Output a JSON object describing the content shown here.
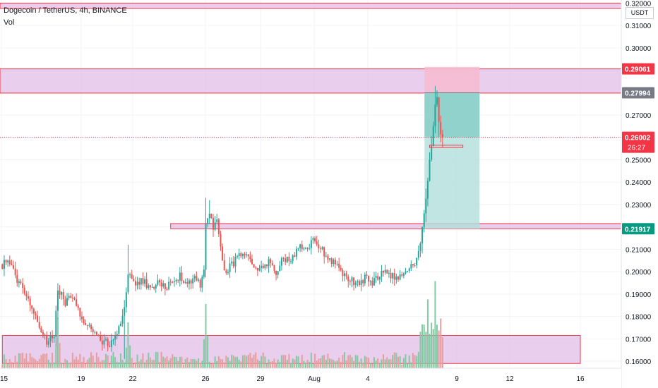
{
  "header": {
    "title": "Dogecoin / TetherUS, 4h, BINANCE",
    "indicator": "Vol"
  },
  "price_axis": {
    "currency": "USDT",
    "ticks": [
      "0.31000",
      "0.30000",
      "0.29000",
      "0.28000",
      "0.27000",
      "0.26000",
      "0.25000",
      "0.24000",
      "0.23000",
      "0.22000",
      "0.21000",
      "0.20000",
      "0.19000",
      "0.18000",
      "0.17000",
      "0.16000"
    ],
    "top_partial_tick": "0.32000",
    "badges": [
      {
        "text": "0.29061",
        "value": 0.29061,
        "color": "#f23645"
      },
      {
        "text": "0.27994",
        "value": 0.27994,
        "color": "#787b86"
      },
      {
        "text": "0.26002",
        "value": 0.26002,
        "color": "#f23645",
        "sub": "26:27"
      },
      {
        "text": "0.21917",
        "value": 0.21917,
        "color": "#089981"
      }
    ]
  },
  "time_axis": {
    "labels": [
      "15",
      "19",
      "22",
      "26",
      "29",
      "Aug",
      "4",
      "9",
      "12",
      "16"
    ]
  },
  "colors": {
    "up": "#26a69a",
    "down": "#ef5350",
    "zone_fill": "#e1bee7",
    "zone_border": "#f23645",
    "profit": "#b2dfdb",
    "loss": "#f8bbd0"
  },
  "chart_data": {
    "type": "candlestick",
    "title": "Dogecoin / TetherUS, 4h, BINANCE",
    "instrument": "DOGEUSDT",
    "timeframe": "4h",
    "exchange": "BINANCE",
    "price_range": [
      0.155,
      0.322
    ],
    "current_price": 0.26002,
    "bar_countdown": "26:27",
    "anchors": [
      [
        0,
        0.203
      ],
      [
        3,
        0.206
      ],
      [
        8,
        0.196
      ],
      [
        12,
        0.192
      ],
      [
        16,
        0.184
      ],
      [
        20,
        0.176
      ],
      [
        24,
        0.168
      ],
      [
        28,
        0.172
      ],
      [
        30,
        0.193
      ],
      [
        34,
        0.186
      ],
      [
        38,
        0.19
      ],
      [
        42,
        0.181
      ],
      [
        46,
        0.176
      ],
      [
        50,
        0.172
      ],
      [
        54,
        0.168
      ],
      [
        56,
        0.17
      ],
      [
        58,
        0.166
      ],
      [
        62,
        0.173
      ],
      [
        66,
        0.183
      ],
      [
        68,
        0.2
      ],
      [
        72,
        0.194
      ],
      [
        76,
        0.196
      ],
      [
        80,
        0.192
      ],
      [
        84,
        0.195
      ],
      [
        88,
        0.193
      ],
      [
        92,
        0.196
      ],
      [
        96,
        0.198
      ],
      [
        100,
        0.195
      ],
      [
        104,
        0.198
      ],
      [
        107,
        0.194
      ],
      [
        109,
        0.201
      ],
      [
        110,
        0.222
      ],
      [
        112,
        0.226
      ],
      [
        114,
        0.219
      ],
      [
        116,
        0.223
      ],
      [
        118,
        0.211
      ],
      [
        120,
        0.2
      ],
      [
        124,
        0.203
      ],
      [
        128,
        0.207
      ],
      [
        132,
        0.206
      ],
      [
        136,
        0.203
      ],
      [
        140,
        0.201
      ],
      [
        144,
        0.205
      ],
      [
        148,
        0.2
      ],
      [
        152,
        0.206
      ],
      [
        156,
        0.205
      ],
      [
        160,
        0.211
      ],
      [
        164,
        0.209
      ],
      [
        168,
        0.214
      ],
      [
        172,
        0.211
      ],
      [
        176,
        0.206
      ],
      [
        180,
        0.204
      ],
      [
        184,
        0.199
      ],
      [
        188,
        0.196
      ],
      [
        192,
        0.195
      ],
      [
        196,
        0.197
      ],
      [
        200,
        0.195
      ],
      [
        204,
        0.199
      ],
      [
        208,
        0.2
      ],
      [
        212,
        0.197
      ],
      [
        216,
        0.198
      ],
      [
        220,
        0.201
      ],
      [
        224,
        0.205
      ],
      [
        226,
        0.212
      ],
      [
        228,
        0.225
      ],
      [
        230,
        0.24
      ],
      [
        232,
        0.257
      ],
      [
        234,
        0.276
      ],
      [
        235,
        0.277
      ],
      [
        236,
        0.268
      ],
      [
        237,
        0.262
      ],
      [
        238,
        0.26
      ]
    ],
    "volume_spikes": [
      [
        30,
        0.55
      ],
      [
        68,
        0.5
      ],
      [
        110,
        0.7
      ],
      [
        230,
        0.75
      ],
      [
        234,
        0.95
      ]
    ],
    "zones": [
      {
        "from": 0.3176,
        "to": 0.32
      },
      {
        "from": 0.2798,
        "to": 0.2906
      },
      {
        "from": 0.2192,
        "to": 0.2215,
        "start_bar": 91
      },
      {
        "from": 0.159,
        "to": 0.1715,
        "start_bar": 0,
        "end_time": "16"
      }
    ],
    "position": {
      "type": "long",
      "entry": 0.27994,
      "stop": 0.2915,
      "target": 0.2192,
      "start_bar": 229,
      "end_bar": 258
    },
    "price_lines": [
      {
        "value": 0.26002,
        "style": "dotted",
        "color": "#f23645"
      },
      {
        "value": 0.27994,
        "style": "solid",
        "color": "#787b86"
      }
    ],
    "small_box": {
      "from": 0.2555,
      "to": 0.2565,
      "start_bar": 231,
      "end_bar": 249
    }
  }
}
